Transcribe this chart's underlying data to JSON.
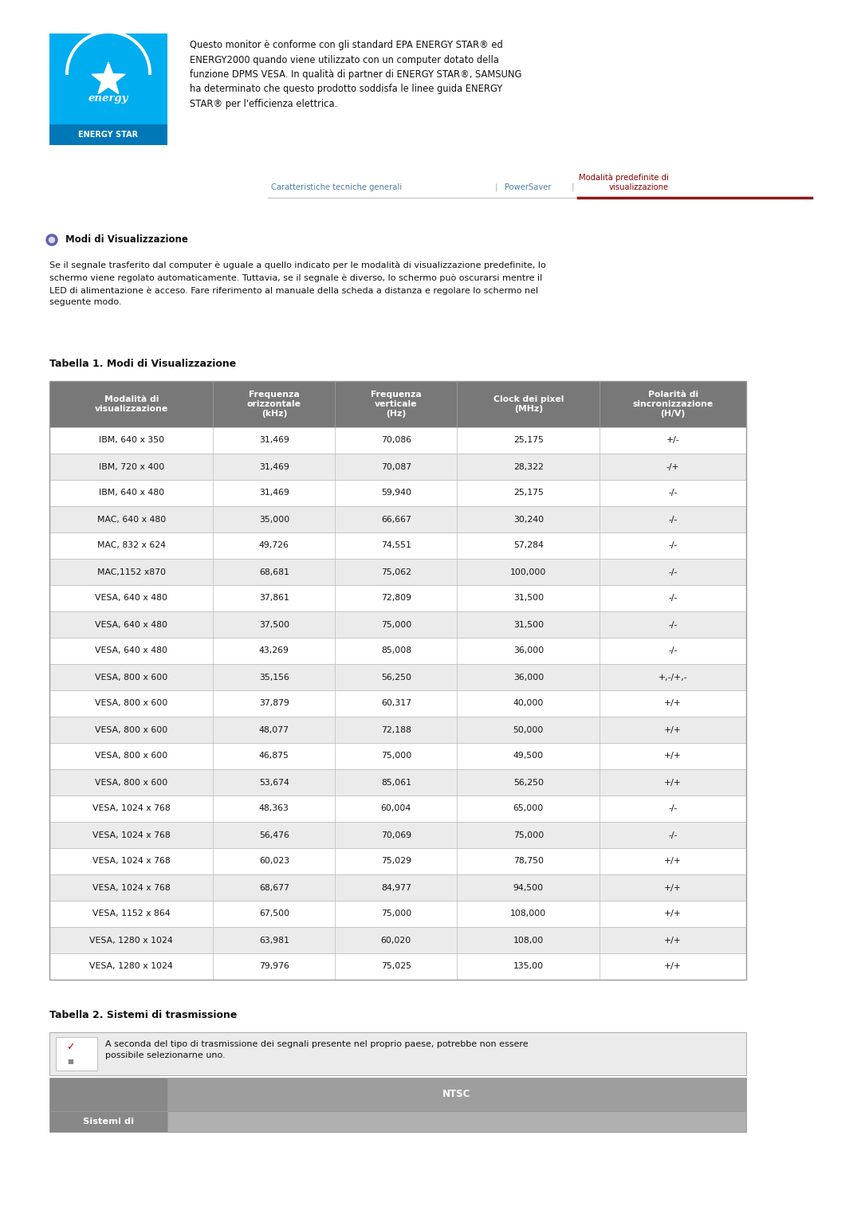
{
  "bg_color": "#ffffff",
  "energy_star_box_color": "#00adef",
  "energy_star_desc": "Questo monitor è conforme con gli standard EPA ENERGY STAR® ed\nENERGY2000 quando viene utilizzato con un computer dotato della\nfunzione DPMS VESA. In qualità di partner di ENERGY STAR®, SAMSUNG\nha determinato che questo prodotto soddisfa le linee guida ENERGY\nSTAR® per l'efficienza elettrica.",
  "nav_color": "#4a7fa5",
  "nav_active_color": "#8b0000",
  "section_title": "Modi di Visualizzazione",
  "body_text": "Se il segnale trasferito dal computer è uguale a quello indicato per le modalità di visualizzazione predefinite, lo\nschermo viene regolato automaticamente. Tuttavia, se il segnale è diverso, lo schermo può oscurarsi mentre il\nLED di alimentazione è acceso. Fare riferimento al manuale della scheda a distanza e regolare lo schermo nel\nseguente modo.",
  "table1_title": "Tabella 1. Modi di Visualizzazione",
  "table1_headers": [
    "Modalità di\nvisualizzazione",
    "Frequenza\norizzontale\n(kHz)",
    "Frequenza\nverticale\n(Hz)",
    "Clock dei pixel\n(MHz)",
    "Polarità di\nsincronizzazione\n(H/V)"
  ],
  "table1_header_bg": "#787878",
  "table1_header_color": "#ffffff",
  "table1_row_bg_even": "#ffffff",
  "table1_row_bg_odd": "#ebebeb",
  "table1_border_color": "#bbbbbb",
  "table1_data": [
    [
      "IBM, 640 x 350",
      "31,469",
      "70,086",
      "25,175",
      "+/-"
    ],
    [
      "IBM, 720 x 400",
      "31,469",
      "70,087",
      "28,322",
      "-/+"
    ],
    [
      "IBM, 640 x 480",
      "31,469",
      "59,940",
      "25,175",
      "-/-"
    ],
    [
      "MAC, 640 x 480",
      "35,000",
      "66,667",
      "30,240",
      "-/-"
    ],
    [
      "MAC, 832 x 624",
      "49,726",
      "74,551",
      "57,284",
      "-/-"
    ],
    [
      "MAC,1152 x870",
      "68,681",
      "75,062",
      "100,000",
      "-/-"
    ],
    [
      "VESA, 640 x 480",
      "37,861",
      "72,809",
      "31,500",
      "-/-"
    ],
    [
      "VESA, 640 x 480",
      "37,500",
      "75,000",
      "31,500",
      "-/-"
    ],
    [
      "VESA, 640 x 480",
      "43,269",
      "85,008",
      "36,000",
      "-/-"
    ],
    [
      "VESA, 800 x 600",
      "35,156",
      "56,250",
      "36,000",
      "+,-/+,-"
    ],
    [
      "VESA, 800 x 600",
      "37,879",
      "60,317",
      "40,000",
      "+/+"
    ],
    [
      "VESA, 800 x 600",
      "48,077",
      "72,188",
      "50,000",
      "+/+"
    ],
    [
      "VESA, 800 x 600",
      "46,875",
      "75,000",
      "49,500",
      "+/+"
    ],
    [
      "VESA, 800 x 600",
      "53,674",
      "85,061",
      "56,250",
      "+/+"
    ],
    [
      "VESA, 1024 x 768",
      "48,363",
      "60,004",
      "65,000",
      "-/-"
    ],
    [
      "VESA, 1024 x 768",
      "56,476",
      "70,069",
      "75,000",
      "-/-"
    ],
    [
      "VESA, 1024 x 768",
      "60,023",
      "75,029",
      "78,750",
      "+/+"
    ],
    [
      "VESA, 1024 x 768",
      "68,677",
      "84,977",
      "94,500",
      "+/+"
    ],
    [
      "VESA, 1152 x 864",
      "67,500",
      "75,000",
      "108,000",
      "+/+"
    ],
    [
      "VESA, 1280 x 1024",
      "63,981",
      "60,020",
      "108,00",
      "+/+"
    ],
    [
      "VESA, 1280 x 1024",
      "79,976",
      "75,025",
      "135,00",
      "+/+"
    ]
  ],
  "table2_title": "Tabella 2. Sistemi di trasmissione",
  "table2_note": "A seconda del tipo di trasmissione dei segnali presente nel proprio paese, potrebbe non essere\npossibile selezionarne uno.",
  "table2_note_bg": "#ebebeb",
  "table2_header": "NTSC",
  "table2_row_label": "Sistemi di",
  "table2_header_bg": "#9e9e9e",
  "table2_row_bg": "#888888",
  "table2_sub_bg": "#b0b0b0"
}
